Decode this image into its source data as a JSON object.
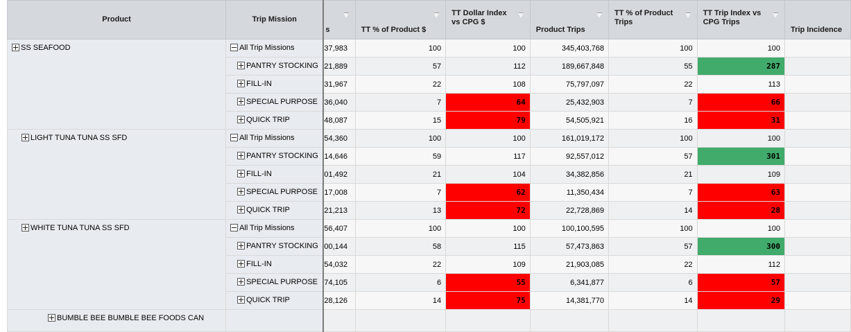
{
  "headers": {
    "product": "Product",
    "trip_mission": "Trip Mission",
    "clipped": "s",
    "tt_pct_product_dollars": "TT % of Product $",
    "tt_dollar_index": "TT Dollar Index vs CPG $",
    "product_trips": "Product Trips",
    "tt_pct_product_trips": "TT % of Product Trips",
    "tt_trip_index": "TT Trip Index vs CPG Trips",
    "trip_incidence": "Trip Incidence"
  },
  "groups": [
    {
      "product": "SS SEAFOOD",
      "rows": [
        {
          "mission": "All Trip Missions",
          "clipped": "37,983",
          "pct_dollars": "100",
          "dollar_index": "100",
          "product_trips": "345,403,768",
          "pct_trips": "100",
          "trip_index": "100"
        },
        {
          "mission": "PANTRY STOCKING",
          "clipped": "21,889",
          "pct_dollars": "57",
          "dollar_index": "112",
          "product_trips": "189,667,848",
          "pct_trips": "55",
          "trip_index": "287"
        },
        {
          "mission": "FILL-IN",
          "clipped": "31,967",
          "pct_dollars": "22",
          "dollar_index": "108",
          "product_trips": "75,797,097",
          "pct_trips": "22",
          "trip_index": "113"
        },
        {
          "mission": "SPECIAL PURPOSE",
          "clipped": "36,040",
          "pct_dollars": "7",
          "dollar_index": "64",
          "product_trips": "25,432,903",
          "pct_trips": "7",
          "trip_index": "66"
        },
        {
          "mission": "QUICK TRIP",
          "clipped": "48,087",
          "pct_dollars": "15",
          "dollar_index": "79",
          "product_trips": "54,505,921",
          "pct_trips": "16",
          "trip_index": "31"
        }
      ]
    },
    {
      "product": "LIGHT TUNA TUNA SS SFD",
      "rows": [
        {
          "mission": "All Trip Missions",
          "clipped": "54,360",
          "pct_dollars": "100",
          "dollar_index": "100",
          "product_trips": "161,019,172",
          "pct_trips": "100",
          "trip_index": "100"
        },
        {
          "mission": "PANTRY STOCKING",
          "clipped": "14,646",
          "pct_dollars": "59",
          "dollar_index": "117",
          "product_trips": "92,557,012",
          "pct_trips": "57",
          "trip_index": "301"
        },
        {
          "mission": "FILL-IN",
          "clipped": "01,492",
          "pct_dollars": "21",
          "dollar_index": "104",
          "product_trips": "34,382,856",
          "pct_trips": "21",
          "trip_index": "109"
        },
        {
          "mission": "SPECIAL PURPOSE",
          "clipped": "17,008",
          "pct_dollars": "7",
          "dollar_index": "62",
          "product_trips": "11,350,434",
          "pct_trips": "7",
          "trip_index": "63"
        },
        {
          "mission": "QUICK TRIP",
          "clipped": "21,213",
          "pct_dollars": "13",
          "dollar_index": "72",
          "product_trips": "22,728,869",
          "pct_trips": "14",
          "trip_index": "28"
        }
      ]
    },
    {
      "product": "WHITE TUNA TUNA SS SFD",
      "rows": [
        {
          "mission": "All Trip Missions",
          "clipped": "56,407",
          "pct_dollars": "100",
          "dollar_index": "100",
          "product_trips": "100,100,595",
          "pct_trips": "100",
          "trip_index": "100"
        },
        {
          "mission": "PANTRY STOCKING",
          "clipped": "00,144",
          "pct_dollars": "58",
          "dollar_index": "115",
          "product_trips": "57,473,863",
          "pct_trips": "57",
          "trip_index": "300"
        },
        {
          "mission": "FILL-IN",
          "clipped": "54,032",
          "pct_dollars": "22",
          "dollar_index": "109",
          "product_trips": "21,903,085",
          "pct_trips": "22",
          "trip_index": "112"
        },
        {
          "mission": "SPECIAL PURPOSE",
          "clipped": "74,105",
          "pct_dollars": "6",
          "dollar_index": "55",
          "product_trips": "6,341,877",
          "pct_trips": "6",
          "trip_index": "57"
        },
        {
          "mission": "QUICK TRIP",
          "clipped": "28,126",
          "pct_dollars": "14",
          "dollar_index": "75",
          "product_trips": "14,381,770",
          "pct_trips": "14",
          "trip_index": "29"
        }
      ]
    }
  ],
  "partial_row_product": "BUMBLE BEE BUMBLE BEE FOODS CAN",
  "highlights": {
    "red_cells": {
      "dollar_index": [
        "64",
        "79",
        "62",
        "72",
        "55",
        "75"
      ],
      "trip_index": [
        "66",
        "31",
        "63",
        "28",
        "57",
        "29"
      ]
    },
    "green_cells": {
      "trip_index": [
        "287",
        "301",
        "300"
      ]
    },
    "red_color": "#ff0000",
    "green_color": "#41ab6b"
  },
  "icons": {
    "expand": "plus-box-icon",
    "collapse": "minus-box-icon",
    "filter": "filter-icon"
  }
}
